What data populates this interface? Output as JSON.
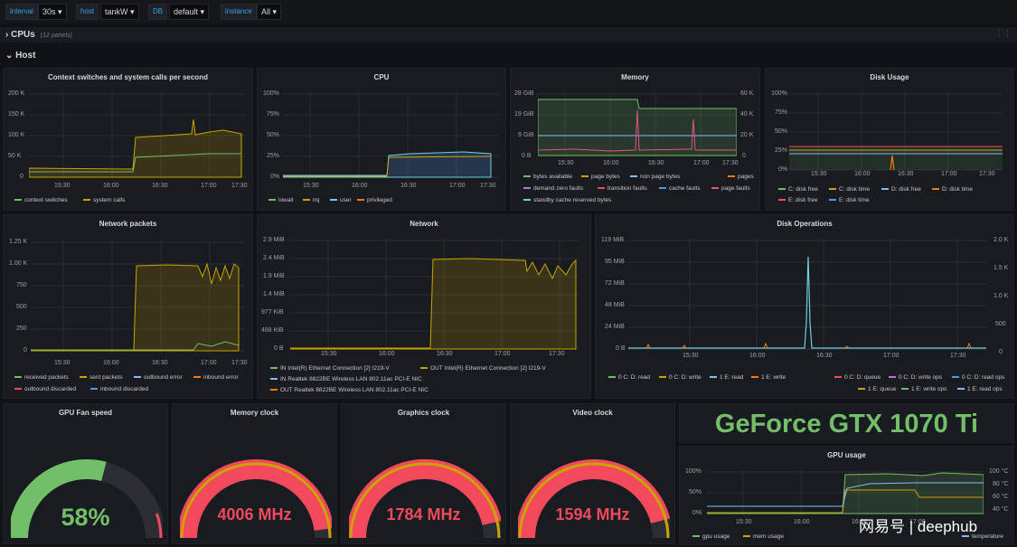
{
  "variables": [
    {
      "label": "interval",
      "value": "30s ▾"
    },
    {
      "label": "host",
      "value": "tankW ▾"
    },
    {
      "label": "DB",
      "value": "default ▾"
    },
    {
      "label": "instance",
      "value": "All ▾"
    }
  ],
  "rows": {
    "cpus": {
      "title": "CPUs",
      "sub": "(12 panels)"
    },
    "host": {
      "title": "Host"
    }
  },
  "colors": {
    "green": "#73bf69",
    "yellow": "#cca300",
    "orange": "#ff780a",
    "red": "#f2495c",
    "blue": "#5794f2",
    "cyan": "#8ab8ff",
    "purple": "#b877d9",
    "pink": "#e0577a",
    "teal": "#6ed0e0"
  },
  "panels": {
    "ctx": {
      "title": "Context switches and system calls per second",
      "yticks": [
        "200 K",
        "150 K",
        "100 K",
        "50 K",
        "0"
      ],
      "xticks": [
        "15:30",
        "16:00",
        "16:30",
        "17:00",
        "17:30"
      ],
      "legend": [
        "context switches",
        "system calls"
      ]
    },
    "cpu": {
      "title": "CPU",
      "yticks": [
        "100%",
        "75%",
        "50%",
        "25%",
        "0%"
      ],
      "xticks": [
        "15:30",
        "16:00",
        "16:30",
        "17:00",
        "17:30"
      ],
      "legend": [
        "lowait",
        "irq",
        "user",
        "privileged"
      ]
    },
    "mem": {
      "title": "Memory",
      "yticks": [
        "28 GiB",
        "19 GiB",
        "9 GiB",
        "0 B"
      ],
      "yticks_right": [
        "60 K",
        "40 K",
        "20 K",
        "0"
      ],
      "xticks": [
        "15:30",
        "16:00",
        "16:30",
        "17:00",
        "17:30"
      ],
      "legend": [
        "bytes available",
        "page bytes",
        "non page bytes",
        "pages",
        "demand zero faults",
        "transition faults",
        "cache faults",
        "page faults",
        "standby cache reserved bytes"
      ]
    },
    "disk": {
      "title": "Disk Usage",
      "yticks": [
        "100%",
        "75%",
        "50%",
        "25%",
        "0%"
      ],
      "xticks": [
        "15:30",
        "16:00",
        "16:30",
        "17:00",
        "17:30"
      ],
      "legend": [
        "C: disk free",
        "C: disk time",
        "D: disk free",
        "D: disk time",
        "E: disk free",
        "E: disk time"
      ]
    },
    "netp": {
      "title": "Network packets",
      "yticks": [
        "1.25 K",
        "1.00 K",
        "750",
        "500",
        "250",
        "0"
      ],
      "xticks": [
        "15:30",
        "16:00",
        "16:30",
        "17:00",
        "17:30"
      ],
      "legend": [
        "received packets",
        "sent packets",
        "outbound error",
        "inbound error",
        "outbound discarded",
        "inbound discarded"
      ]
    },
    "net": {
      "title": "Network",
      "yticks": [
        "2.9 MiB",
        "2.4 MiB",
        "1.9 MiB",
        "1.4 MiB",
        "977 KiB",
        "488 KiB",
        "0 B"
      ],
      "xticks": [
        "15:30",
        "16:00",
        "16:30",
        "17:00",
        "17:30"
      ],
      "legend": [
        "IN Intel(R) Ethernet Connection [2] I219-V",
        "OUT Intel(R) Ethernet Connection [2] I219-V",
        "IN Realtek 8822BE Wireless LAN 802.11ac PCI-E NIC",
        "OUT Realtek 8822BE Wireless LAN 802.11ac PCI-E NIC"
      ]
    },
    "diskops": {
      "title": "Disk Operations",
      "yticks": [
        "119 MiB",
        "95 MiB",
        "72 MiB",
        "48 MiB",
        "24 MiB",
        "0 B"
      ],
      "yticks_right": [
        "2.0 K",
        "1.5 K",
        "1.0 K",
        "500",
        "0"
      ],
      "xticks": [
        "15:30",
        "16:00",
        "16:30",
        "17:00",
        "17:30"
      ],
      "legend": [
        "0 C: D: read",
        "0 C: D: write",
        "1 E: read",
        "1 E: write",
        "0 C: D: queue",
        "0 C: D: write ops",
        "0 C: D: read ops",
        "1 E: queue",
        "1 E: write ops",
        "1 E: read ops"
      ]
    },
    "gauges": [
      {
        "title": "GPU Fan speed",
        "value": "58%",
        "fill": 0.58,
        "color": "#73bf69"
      },
      {
        "title": "Memory clock",
        "value": "4006 MHz",
        "fill": 0.96,
        "color": "#f2495c"
      },
      {
        "title": "Graphics clock",
        "value": "1784 MHz",
        "fill": 0.93,
        "color": "#f2495c"
      },
      {
        "title": "Video clock",
        "value": "1594 MHz",
        "fill": 0.92,
        "color": "#f2495c"
      }
    ],
    "gpu_name": "GeForce GTX 1070 Ti",
    "gpuusage": {
      "title": "GPU usage",
      "yticks": [
        "100%",
        "50%",
        "0%"
      ],
      "yticks_right": [
        "100 °C",
        "80 °C",
        "60 °C",
        "40 °C"
      ],
      "xticks": [
        "15:30",
        "16:00",
        "16:30",
        "17:00"
      ],
      "legend": [
        "gpu usage",
        "mem usage",
        "temperature"
      ]
    }
  },
  "watermark": "网易号 | deephub"
}
